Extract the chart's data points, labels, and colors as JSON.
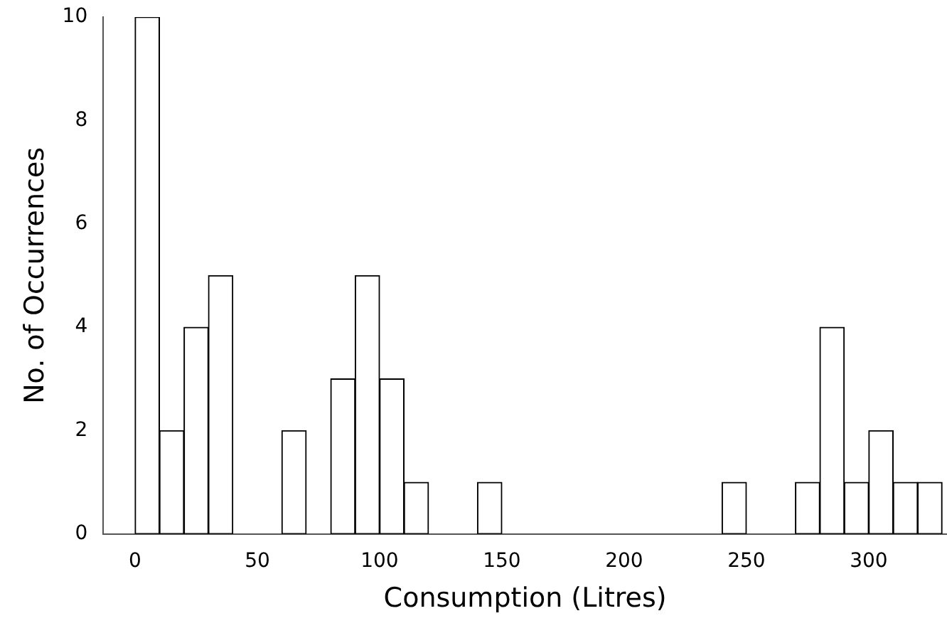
{
  "chart_data": {
    "type": "histogram",
    "xlabel": "Consumption (Litres)",
    "ylabel": "No. of Occurrences",
    "bins": [
      0,
      10,
      20,
      30,
      40,
      50,
      60,
      70,
      80,
      90,
      100,
      110,
      120,
      130,
      140,
      150,
      160,
      170,
      180,
      190,
      200,
      210,
      220,
      230,
      240,
      250,
      260,
      270,
      280,
      290,
      300,
      310,
      320,
      330
    ],
    "values": [
      10,
      2,
      4,
      5,
      0,
      0,
      2,
      0,
      3,
      5,
      3,
      1,
      0,
      0,
      1,
      0,
      0,
      0,
      0,
      0,
      0,
      0,
      0,
      0,
      1,
      0,
      0,
      1,
      4,
      1,
      2,
      1,
      1
    ],
    "color": "#ffffff",
    "xlim": [
      -13,
      332
    ],
    "xticks": [
      0,
      50,
      100,
      150,
      200,
      250,
      300
    ],
    "ylim": [
      0,
      10
    ],
    "yticks": [
      0,
      2,
      4,
      6,
      8,
      10
    ],
    "grid": false,
    "legend": false
  }
}
